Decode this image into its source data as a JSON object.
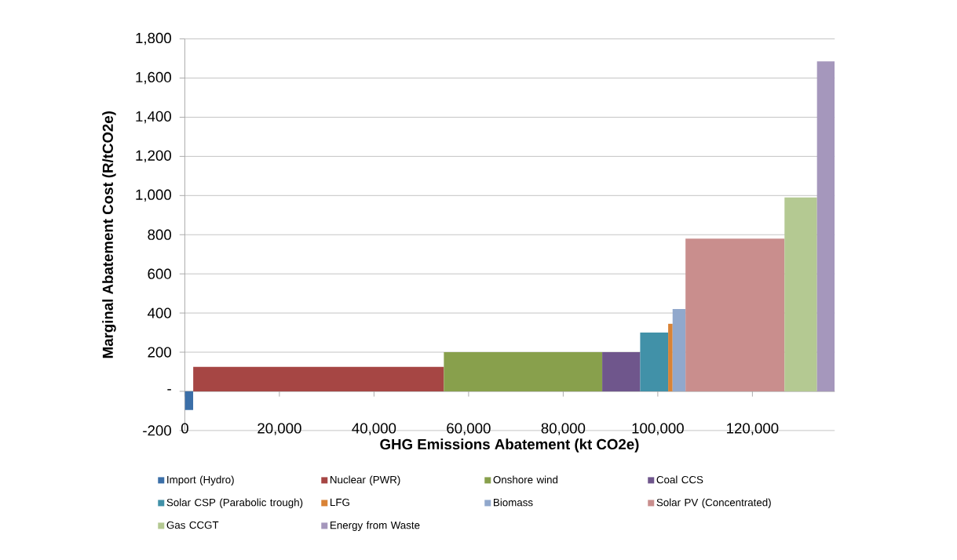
{
  "chart_data": {
    "type": "area",
    "xlabel": "GHG Emissions Abatement (kt CO2e)",
    "ylabel": "Marginal Abatement Cost (R/tCO2e)",
    "xlim": [
      0,
      137400
    ],
    "ylim": [
      -200,
      1800
    ],
    "xticks": [
      0,
      {
        "value": 20000,
        "label": "20,000"
      },
      {
        "value": 40000,
        "label": "40,000"
      },
      {
        "value": 60000,
        "label": "60,000"
      },
      {
        "value": 80000,
        "label": "80,000"
      },
      {
        "value": 100000,
        "label": "100,000"
      },
      {
        "value": 120000,
        "label": "120,000"
      }
    ],
    "yticks": [
      -200,
      {
        "value": 0,
        "label": "-"
      },
      200,
      400,
      600,
      800,
      {
        "value": 1000,
        "label": "1,000"
      },
      {
        "value": 1200,
        "label": "1,200"
      },
      {
        "value": 1400,
        "label": "1,400"
      },
      {
        "value": 1600,
        "label": "1,600"
      },
      {
        "value": 1800,
        "label": "1,800"
      }
    ],
    "grid": "y",
    "legend": "bottom",
    "series": [
      {
        "name": "Import (Hydro)",
        "color": "#3b6fa8",
        "x": [
          0,
          1780
        ],
        "values": [
          -95,
          -95
        ]
      },
      {
        "name": "Nuclear (PWR)",
        "color": "#a64644",
        "x": [
          1780,
          54770
        ],
        "values": [
          125,
          125
        ]
      },
      {
        "name": "Onshore wind",
        "color": "#88a04c",
        "x": [
          54770,
          88250
        ],
        "values": [
          200,
          200
        ]
      },
      {
        "name": "Coal CCS",
        "color": "#6f568c",
        "x": [
          88250,
          96270
        ],
        "values": [
          200,
          200
        ]
      },
      {
        "name": "Solar CSP (Parabolic trough)",
        "color": "#4191a8",
        "x": [
          96270,
          102190
        ],
        "values": [
          300,
          300
        ]
      },
      {
        "name": "LFG",
        "color": "#d98336",
        "x": [
          102190,
          103130
        ],
        "values": [
          345,
          345
        ]
      },
      {
        "name": "Biomass",
        "color": "#91a8cc",
        "x": [
          103130,
          105860
        ],
        "values": [
          420,
          420
        ]
      },
      {
        "name": "Solar PV (Concentrated)",
        "color": "#c98e8d",
        "x": [
          105860,
          126790
        ],
        "values": [
          780,
          780
        ]
      },
      {
        "name": "Gas CCGT",
        "color": "#b4c992",
        "x": [
          126790,
          133660
        ],
        "values": [
          990,
          990
        ]
      },
      {
        "name": "Energy from Waste",
        "color": "#a597bc",
        "x": [
          133660,
          137400
        ],
        "values": [
          1685,
          1685
        ]
      }
    ]
  }
}
